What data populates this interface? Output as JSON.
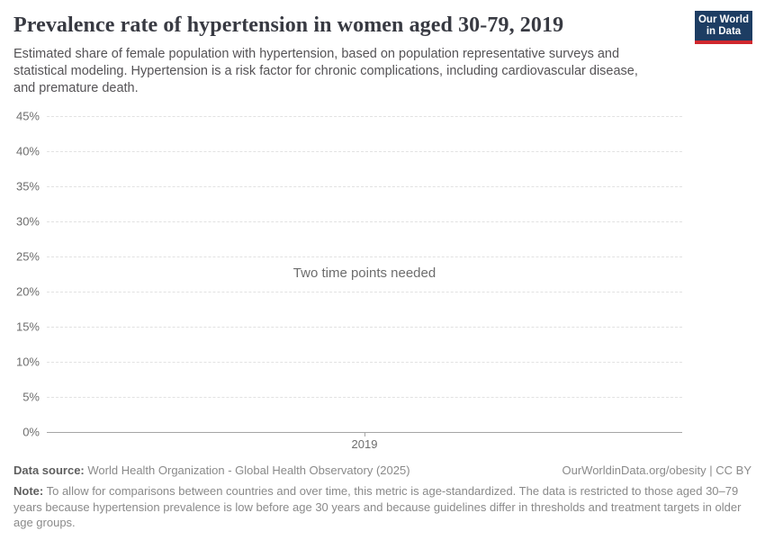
{
  "header": {
    "title": "Prevalence rate of hypertension in women aged 30-79, 2019",
    "subtitle": "Estimated share of female population with hypertension, based on population representative surveys and statistical modeling. Hypertension is a risk factor for chronic complications, including cardiovascular disease, and premature death.",
    "logo": {
      "line1": "Our World",
      "line2": "in Data",
      "bg_color": "#1d3d63",
      "accent_color": "#d0282e"
    }
  },
  "chart_data": {
    "type": "line",
    "title": "Prevalence rate of hypertension in women aged 30-79, 2019",
    "series": [],
    "x": [
      2019
    ],
    "x_tick_labels": [
      "2019"
    ],
    "y_ticks": [
      0,
      5,
      10,
      15,
      20,
      25,
      30,
      35,
      40,
      45
    ],
    "y_tick_labels": [
      "0%",
      "5%",
      "10%",
      "15%",
      "20%",
      "25%",
      "30%",
      "35%",
      "40%",
      "45%"
    ],
    "ylim": [
      0,
      45
    ],
    "grid": true,
    "legend": "none",
    "empty_message": "Two time points needed",
    "gridline_color": "#e2e2e2",
    "axis_color": "#a5a5a5",
    "tick_label_color": "#6e6e6e"
  },
  "footer": {
    "data_source_label": "Data source:",
    "data_source_text": "World Health Organization - Global Health Observatory (2025)",
    "attribution": "OurWorldinData.org/obesity | CC BY",
    "note_label": "Note:",
    "note_text": "To allow for comparisons between countries and over time, this metric is age-standardized. The data is restricted to those aged 30–79 years because hypertension prevalence is low before age 30 years and because guidelines differ in thresholds and treatment targets in older age groups."
  }
}
